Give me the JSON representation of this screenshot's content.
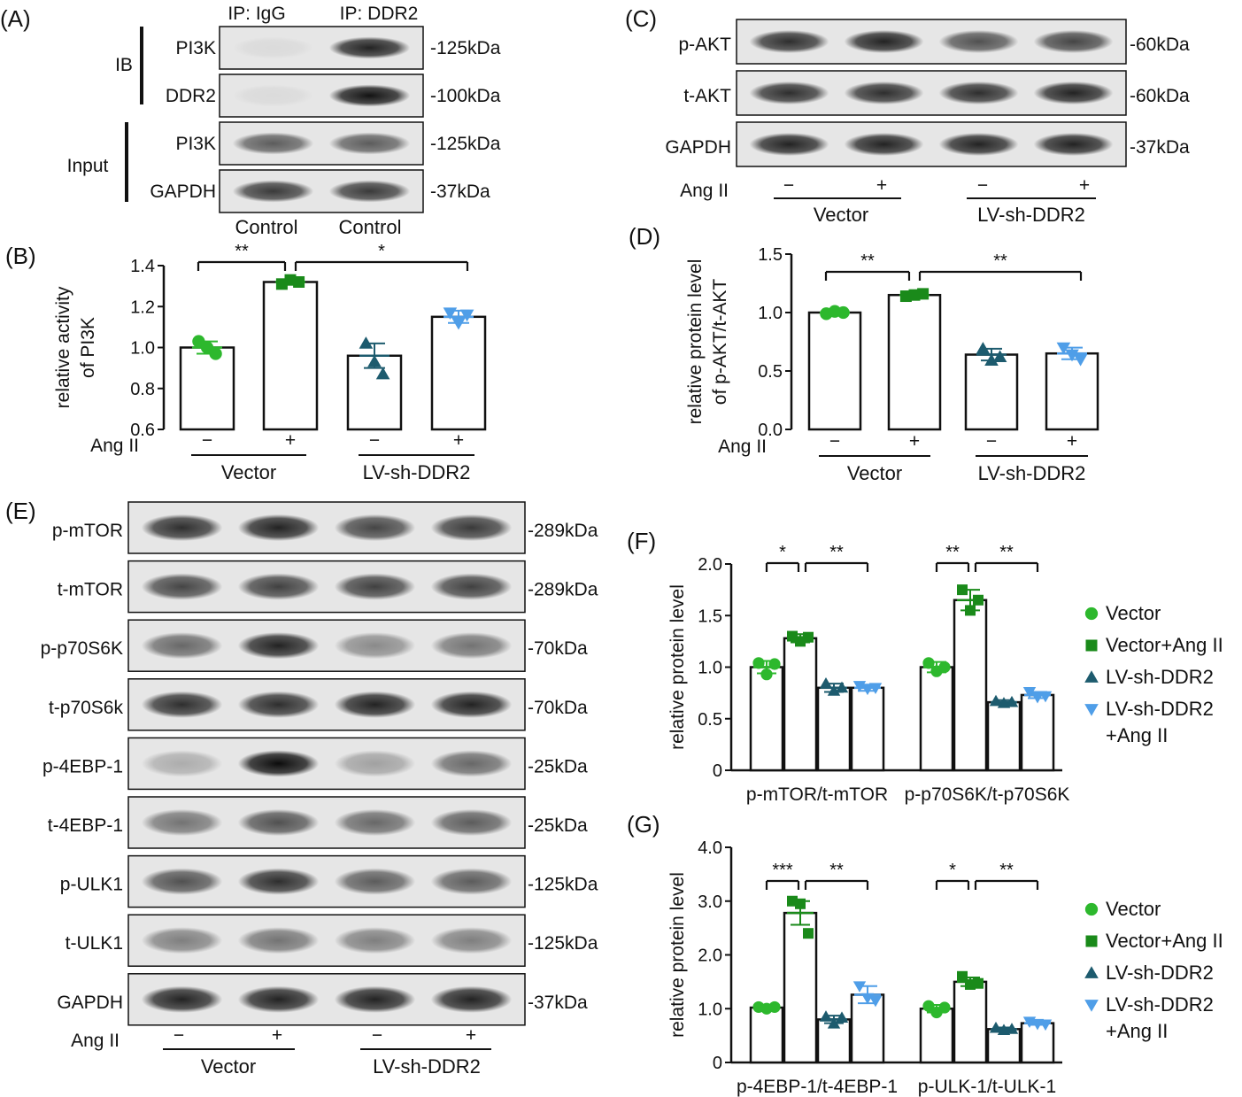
{
  "panels": {
    "A": {
      "letter": "(A)",
      "col_headers": [
        "IP: IgG",
        "IP: DDR2"
      ],
      "group_labels": [
        "IB",
        "Input"
      ],
      "rows": [
        {
          "label": "PI3K",
          "mw": "-125kDa",
          "bands": [
            0.05,
            0.85
          ]
        },
        {
          "label": "DDR2",
          "mw": "-100kDa",
          "bands": [
            0.05,
            0.92
          ]
        },
        {
          "label": "PI3K",
          "mw": "-125kDa",
          "bands": [
            0.6,
            0.6
          ]
        },
        {
          "label": "GAPDH",
          "mw": "-37kDa",
          "bands": [
            0.75,
            0.75
          ]
        }
      ],
      "lane_labels": [
        "Control",
        "Control"
      ]
    },
    "C": {
      "letter": "(C)",
      "rows": [
        {
          "label": "p-AKT",
          "mw": "-60kDa",
          "bands": [
            0.8,
            0.85,
            0.65,
            0.7
          ]
        },
        {
          "label": "t-AKT",
          "mw": "-60kDa",
          "bands": [
            0.8,
            0.8,
            0.8,
            0.85
          ]
        },
        {
          "label": "GAPDH",
          "mw": "-37kDa",
          "bands": [
            0.85,
            0.85,
            0.85,
            0.85
          ]
        }
      ],
      "treatment_label": "Ang II",
      "signs": [
        "−",
        "+",
        "−",
        "+"
      ],
      "groups": [
        "Vector",
        "LV-sh-DDR2"
      ]
    },
    "E": {
      "letter": "(E)",
      "rows": [
        {
          "label": "p-mTOR",
          "mw": "-289kDa",
          "bands": [
            0.8,
            0.85,
            0.7,
            0.75
          ]
        },
        {
          "label": "t-mTOR",
          "mw": "-289kDa",
          "bands": [
            0.7,
            0.72,
            0.72,
            0.72
          ]
        },
        {
          "label": "p-p70S6K",
          "mw": "-70kDa",
          "bands": [
            0.55,
            0.85,
            0.4,
            0.5
          ]
        },
        {
          "label": "t-p70S6k",
          "mw": "-70kDa",
          "bands": [
            0.8,
            0.8,
            0.85,
            0.85
          ]
        },
        {
          "label": "p-4EBP-1",
          "mw": "-25kDa",
          "bands": [
            0.25,
            0.95,
            0.3,
            0.55
          ]
        },
        {
          "label": "t-4EBP-1",
          "mw": "-25kDa",
          "bands": [
            0.5,
            0.65,
            0.55,
            0.6
          ]
        },
        {
          "label": "p-ULK1",
          "mw": "-125kDa",
          "bands": [
            0.65,
            0.8,
            0.6,
            0.6
          ]
        },
        {
          "label": "t-ULK1",
          "mw": "-125kDa",
          "bands": [
            0.45,
            0.5,
            0.45,
            0.45
          ]
        },
        {
          "label": "GAPDH",
          "mw": "-37kDa",
          "bands": [
            0.85,
            0.85,
            0.85,
            0.85
          ]
        }
      ],
      "treatment_label": "Ang II",
      "signs": [
        "−",
        "+",
        "−",
        "+"
      ],
      "groups": [
        "Vector",
        "LV-sh-DDR2"
      ]
    }
  },
  "colors": {
    "vector": "#2db82d",
    "vector_ang": "#1a8a1a",
    "sh": "#1d5b6e",
    "sh_ang": "#4f9ee8"
  },
  "chart_data": [
    {
      "id": "B",
      "type": "bar",
      "letter": "(B)",
      "ylabel": [
        "relative activity",
        "of PI3K"
      ],
      "ylim": [
        0.6,
        1.4
      ],
      "yticks": [
        "0.6",
        "0.8",
        "1.0",
        "1.2",
        "1.4"
      ],
      "treatment_label": "Ang II",
      "signs": [
        "−",
        "+",
        "−",
        "+"
      ],
      "groups": [
        "Vector",
        "LV-sh-DDR2"
      ],
      "values": [
        1.0,
        1.32,
        0.96,
        1.15
      ],
      "errors": [
        0.03,
        0.01,
        0.06,
        0.03
      ],
      "points": [
        [
          1.03,
          1.0,
          0.97
        ],
        [
          1.31,
          1.33,
          1.32
        ],
        [
          1.02,
          0.93,
          0.87
        ],
        [
          1.17,
          1.12,
          1.16
        ]
      ],
      "significance": [
        {
          "from": 0,
          "to": 1,
          "label": "**"
        },
        {
          "from": 1,
          "to": 3,
          "label": "*"
        }
      ]
    },
    {
      "id": "D",
      "type": "bar",
      "letter": "(D)",
      "ylabel": [
        "relative protein level",
        "of p-AKT/t-AKT"
      ],
      "ylim": [
        0,
        1.5
      ],
      "yticks": [
        "0.0",
        "0.5",
        "1.0",
        "1.5"
      ],
      "treatment_label": "Ang II",
      "signs": [
        "−",
        "+",
        "−",
        "+"
      ],
      "groups": [
        "Vector",
        "LV-sh-DDR2"
      ],
      "values": [
        1.0,
        1.15,
        0.64,
        0.65
      ],
      "errors": [
        0.02,
        0.01,
        0.05,
        0.05
      ],
      "points": [
        [
          0.99,
          1.01,
          1.0
        ],
        [
          1.14,
          1.15,
          1.16
        ],
        [
          0.69,
          0.59,
          0.62
        ],
        [
          0.7,
          0.64,
          0.6
        ]
      ],
      "significance": [
        {
          "from": 0,
          "to": 1,
          "label": "**"
        },
        {
          "from": 1,
          "to": 3,
          "label": "**"
        }
      ]
    },
    {
      "id": "F",
      "type": "bar",
      "letter": "(F)",
      "ylabel": [
        "relative protein level"
      ],
      "ylim": [
        0,
        2.0
      ],
      "yticks": [
        "0",
        "0.5",
        "1.0",
        "1.5",
        "2.0"
      ],
      "categories": [
        "p-mTOR/t-mTOR",
        "p-p70S6K/t-p70S6K"
      ],
      "series_names": [
        "Vector",
        "Vector+Ang II",
        "LV-sh-DDR2",
        "LV-sh-DDR2\n+Ang II"
      ],
      "values": [
        [
          1.0,
          1.28,
          0.8,
          0.8
        ],
        [
          1.0,
          1.65,
          0.66,
          0.73
        ]
      ],
      "errors": [
        [
          0.06,
          0.04,
          0.04,
          0.03
        ],
        [
          0.05,
          0.1,
          0.02,
          0.03
        ]
      ],
      "points": [
        [
          [
            1.04,
            0.93,
            1.03
          ],
          [
            1.3,
            1.25,
            1.29
          ],
          [
            0.84,
            0.77,
            0.8
          ],
          [
            0.82,
            0.79,
            0.8
          ]
        ],
        [
          [
            1.04,
            0.96,
            1.0
          ],
          [
            1.75,
            1.55,
            1.65
          ],
          [
            0.67,
            0.65,
            0.66
          ],
          [
            0.76,
            0.71,
            0.72
          ]
        ]
      ],
      "significance": [
        [
          {
            "from": 0,
            "to": 1,
            "label": "*"
          },
          {
            "from": 1,
            "to": 3,
            "label": "**"
          }
        ],
        [
          {
            "from": 0,
            "to": 1,
            "label": "**"
          },
          {
            "from": 1,
            "to": 3,
            "label": "**"
          }
        ]
      ]
    },
    {
      "id": "G",
      "type": "bar",
      "letter": "(G)",
      "ylabel": [
        "relative protein level"
      ],
      "ylim": [
        0,
        4.0
      ],
      "yticks": [
        "0",
        "1.0",
        "2.0",
        "3.0",
        "4.0"
      ],
      "categories": [
        "p-4EBP-1/t-4EBP-1",
        "p-ULK-1/t-ULK-1"
      ],
      "series_names": [
        "Vector",
        "Vector+Ang II",
        "LV-sh-DDR2",
        "LV-sh-DDR2\n+Ang II"
      ],
      "values": [
        [
          1.02,
          2.78,
          0.8,
          1.26
        ],
        [
          1.0,
          1.5,
          0.62,
          0.73
        ]
      ],
      "errors": [
        [
          0.03,
          0.22,
          0.07,
          0.16
        ],
        [
          0.07,
          0.08,
          0.03,
          0.03
        ]
      ],
      "points": [
        [
          [
            1.03,
            1.0,
            1.03
          ],
          [
            3.0,
            2.95,
            2.4
          ],
          [
            0.85,
            0.72,
            0.83
          ],
          [
            1.42,
            1.2,
            1.15
          ]
        ],
        [
          [
            1.05,
            0.93,
            1.02
          ],
          [
            1.6,
            1.45,
            1.47
          ],
          [
            0.64,
            0.6,
            0.62
          ],
          [
            0.76,
            0.72,
            0.71
          ]
        ]
      ],
      "significance": [
        [
          {
            "from": 0,
            "to": 1,
            "label": "***"
          },
          {
            "from": 1,
            "to": 3,
            "label": "**"
          }
        ],
        [
          {
            "from": 0,
            "to": 1,
            "label": "*"
          },
          {
            "from": 1,
            "to": 3,
            "label": "**"
          }
        ]
      ]
    }
  ]
}
